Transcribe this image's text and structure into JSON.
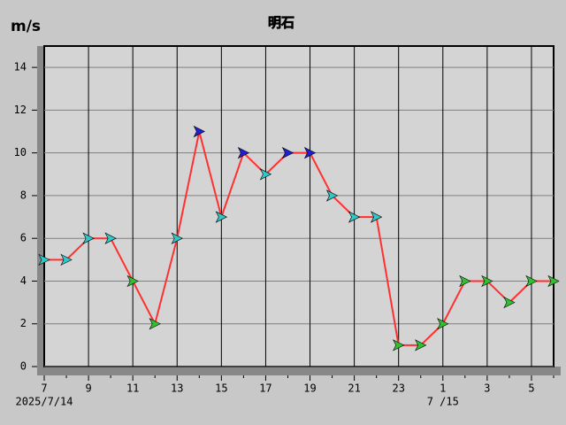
{
  "chart_data": {
    "type": "line",
    "title": "明石",
    "y_label": "m/s",
    "categories": [
      "7",
      null,
      "9",
      null,
      "11",
      null,
      "13",
      null,
      "15",
      null,
      "17",
      null,
      "19",
      null,
      "21",
      null,
      "23",
      null,
      "1",
      null,
      "3",
      null,
      "5",
      null
    ],
    "date_labels": [
      "2025/7/14",
      null,
      null,
      null,
      null,
      null,
      null,
      null,
      null,
      null,
      null,
      null,
      null,
      null,
      null,
      null,
      null,
      null,
      "7 /15",
      null,
      null,
      null,
      null,
      null
    ],
    "series": [
      {
        "color": "#ff3030",
        "values": [
          5,
          5,
          6,
          6,
          4,
          2,
          6,
          11,
          7,
          10,
          9,
          10,
          10,
          8,
          7,
          7,
          1,
          1,
          2,
          4,
          4,
          3,
          4,
          4
        ],
        "point_colors": [
          "#30c8c8",
          "#30c8c8",
          "#30c8c8",
          "#30c8c8",
          "#30c030",
          "#30c030",
          "#30c8c8",
          "#2020d0",
          "#30c8c8",
          "#2020d0",
          "#30c8c8",
          "#2020d0",
          "#2020d0",
          "#30c8c8",
          "#30c8c8",
          "#30c8c8",
          "#30c030",
          "#30c030",
          "#30c030",
          "#30c030",
          "#30c030",
          "#30c030",
          "#30c030",
          "#30c030"
        ]
      }
    ],
    "ylim": [
      0,
      15
    ],
    "yticks": [
      0,
      2,
      4,
      6,
      8,
      10,
      12,
      14
    ],
    "grid": true
  }
}
